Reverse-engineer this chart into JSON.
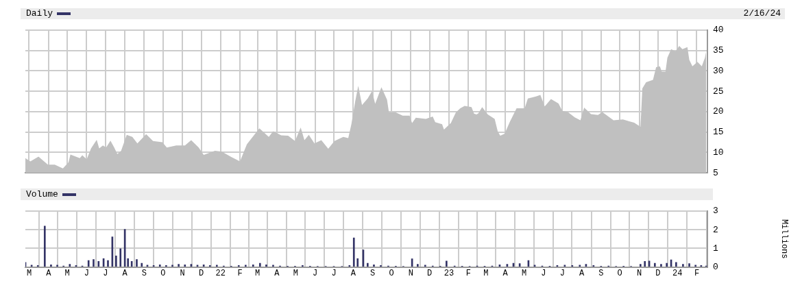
{
  "chart_data": [
    {
      "type": "area",
      "title": "Daily",
      "annotations": [
        "2/16/24"
      ],
      "color": "#c0c0c0",
      "x": [
        "2021-02-23",
        "2021-03-03",
        "2021-03-16",
        "2021-03-31",
        "2021-04-11",
        "2021-04-24",
        "2021-05-03",
        "2021-05-06",
        "2021-05-21",
        "2021-05-25",
        "2021-06-01",
        "2021-06-08",
        "2021-06-17",
        "2021-06-21",
        "2021-06-27",
        "2021-07-02",
        "2021-07-09",
        "2021-07-15",
        "2021-07-20",
        "2021-07-26",
        "2021-08-04",
        "2021-08-13",
        "2021-08-21",
        "2021-09-04",
        "2021-09-15",
        "2021-09-30",
        "2021-10-07",
        "2021-10-22",
        "2021-11-05",
        "2021-11-15",
        "2021-11-27",
        "2021-12-05",
        "2021-12-23",
        "2022-01-03",
        "2022-01-18",
        "2022-02-01",
        "2022-02-12",
        "2022-03-04",
        "2022-03-19",
        "2022-03-26",
        "2022-04-08",
        "2022-04-19",
        "2022-04-30",
        "2022-05-09",
        "2022-05-15",
        "2022-05-22",
        "2022-05-31",
        "2022-06-11",
        "2022-06-22",
        "2022-07-02",
        "2022-07-16",
        "2022-07-24",
        "2022-07-29",
        "2022-08-04",
        "2022-08-09",
        "2022-08-15",
        "2022-08-24",
        "2022-08-31",
        "2022-09-05",
        "2022-09-15",
        "2022-09-24",
        "2022-09-27",
        "2022-10-08",
        "2022-10-19",
        "2022-10-30",
        "2022-11-03",
        "2022-11-09",
        "2022-11-25",
        "2022-12-06",
        "2022-12-10",
        "2022-12-21",
        "2022-12-24",
        "2023-01-04",
        "2023-01-12",
        "2023-01-19",
        "2023-01-26",
        "2023-02-06",
        "2023-02-10",
        "2023-02-14",
        "2023-02-17",
        "2023-02-23",
        "2023-03-04",
        "2023-03-15",
        "2023-03-20",
        "2023-03-24",
        "2023-03-31",
        "2023-04-08",
        "2023-04-19",
        "2023-05-02",
        "2023-05-07",
        "2023-05-20",
        "2023-05-27",
        "2023-06-03",
        "2023-06-13",
        "2023-06-25",
        "2023-07-01",
        "2023-07-10",
        "2023-07-21",
        "2023-07-30",
        "2023-08-05",
        "2023-08-16",
        "2023-08-27",
        "2023-09-03",
        "2023-09-12",
        "2023-09-21",
        "2023-10-06",
        "2023-10-17",
        "2023-10-24",
        "2023-11-03",
        "2023-11-06",
        "2023-11-12",
        "2023-11-23",
        "2023-11-28",
        "2023-12-04",
        "2023-12-07",
        "2023-12-13",
        "2023-12-16",
        "2023-12-22",
        "2023-12-29",
        "2024-01-04",
        "2024-01-09",
        "2024-01-17",
        "2024-01-20",
        "2024-01-25",
        "2024-02-02",
        "2024-02-09",
        "2024-02-14",
        "2024-02-16"
      ],
      "values": [
        8.6,
        7.8,
        9,
        7,
        7,
        6.1,
        7.6,
        9.5,
        8.6,
        9.3,
        8.3,
        11,
        13.1,
        11,
        11.7,
        11.2,
        12.9,
        11.2,
        9.6,
        10.4,
        14.3,
        13.8,
        12.2,
        14.5,
        12.8,
        12.5,
        11.2,
        11.7,
        11.7,
        13,
        11.2,
        9.4,
        10.4,
        10.2,
        8.9,
        7.8,
        12,
        15.9,
        13.8,
        15.2,
        14.2,
        14.1,
        12.8,
        16.1,
        13,
        14.3,
        12.2,
        13,
        10.9,
        12.8,
        13.8,
        13.5,
        16.9,
        22.4,
        26.3,
        21.6,
        23.2,
        25,
        21.9,
        26,
        22.9,
        19.8,
        19.8,
        19,
        19,
        17.2,
        18.5,
        18.2,
        18.8,
        17.4,
        16.9,
        15.6,
        17.2,
        19.8,
        20.8,
        21.4,
        21.1,
        19.5,
        19.3,
        19.6,
        21.1,
        19.3,
        18.2,
        15.1,
        14.1,
        14.6,
        17.4,
        20.8,
        20.8,
        23.2,
        23.7,
        24.1,
        21.3,
        23.1,
        22,
        20.2,
        19.9,
        18.6,
        17.9,
        21,
        19.4,
        19.2,
        19.9,
        18.9,
        17.9,
        18.1,
        17.6,
        17.3,
        16.3,
        25.7,
        27.2,
        27.8,
        30.9,
        31.1,
        29.8,
        29.8,
        33.2,
        35.3,
        34.8,
        36.1,
        35.3,
        35.8,
        32.7,
        31.1,
        32.2,
        31.1,
        33.2,
        34.8
      ],
      "xlim": [
        "2021-02-23",
        "2024-02-18"
      ],
      "xticks": [
        {
          "value": "2021-03-01",
          "label": null
        },
        {
          "value": "2021-04-01",
          "label": null
        },
        {
          "value": "2021-05-01",
          "label": null
        },
        {
          "value": "2021-06-01",
          "label": null
        },
        {
          "value": "2021-07-01",
          "label": null
        },
        {
          "value": "2021-08-01",
          "label": null
        },
        {
          "value": "2021-09-01",
          "label": null
        },
        {
          "value": "2021-10-01",
          "label": null
        },
        {
          "value": "2021-11-01",
          "label": null
        },
        {
          "value": "2021-12-01",
          "label": null
        },
        {
          "value": "2022-01-01",
          "label": null
        },
        {
          "value": "2022-02-01",
          "label": null
        },
        {
          "value": "2022-03-01",
          "label": null
        },
        {
          "value": "2022-04-01",
          "label": null
        },
        {
          "value": "2022-05-01",
          "label": null
        },
        {
          "value": "2022-06-01",
          "label": null
        },
        {
          "value": "2022-07-01",
          "label": null
        },
        {
          "value": "2022-08-01",
          "label": null
        },
        {
          "value": "2022-09-01",
          "label": null
        },
        {
          "value": "2022-10-01",
          "label": null
        },
        {
          "value": "2022-11-01",
          "label": null
        },
        {
          "value": "2022-12-01",
          "label": null
        },
        {
          "value": "2023-01-01",
          "label": null
        },
        {
          "value": "2023-02-01",
          "label": null
        },
        {
          "value": "2023-03-01",
          "label": null
        },
        {
          "value": "2023-04-01",
          "label": null
        },
        {
          "value": "2023-05-01",
          "label": null
        },
        {
          "value": "2023-06-01",
          "label": null
        },
        {
          "value": "2023-07-01",
          "label": null
        },
        {
          "value": "2023-08-01",
          "label": null
        },
        {
          "value": "2023-09-01",
          "label": null
        },
        {
          "value": "2023-10-01",
          "label": null
        },
        {
          "value": "2023-11-01",
          "label": null
        },
        {
          "value": "2023-12-01",
          "label": null
        },
        {
          "value": "2024-01-01",
          "label": null
        },
        {
          "value": "2024-02-01",
          "label": null
        }
      ],
      "ylim": [
        5,
        40
      ],
      "yticks": [
        5,
        10,
        15,
        20,
        25,
        30,
        35,
        40
      ],
      "grid": true,
      "tick_labels": "y"
    },
    {
      "type": "bar",
      "title": "Volume",
      "ylabel": "Millions",
      "color": "#333366",
      "x": [
        "2021-02-23",
        "2021-03-05",
        "2021-03-15",
        "2021-03-26",
        "2021-04-05",
        "2021-04-15",
        "2021-04-25",
        "2021-05-05",
        "2021-05-15",
        "2021-05-25",
        "2021-06-04",
        "2021-06-12",
        "2021-06-20",
        "2021-06-28",
        "2021-07-05",
        "2021-07-12",
        "2021-07-18",
        "2021-07-25",
        "2021-08-01",
        "2021-08-06",
        "2021-08-12",
        "2021-08-20",
        "2021-08-28",
        "2021-09-06",
        "2021-09-16",
        "2021-09-26",
        "2021-10-06",
        "2021-10-16",
        "2021-10-26",
        "2021-11-05",
        "2021-11-15",
        "2021-11-25",
        "2021-12-05",
        "2021-12-15",
        "2021-12-26",
        "2022-01-06",
        "2022-01-18",
        "2022-01-30",
        "2022-02-10",
        "2022-02-22",
        "2022-03-05",
        "2022-03-15",
        "2022-03-26",
        "2022-04-06",
        "2022-04-18",
        "2022-04-30",
        "2022-05-12",
        "2022-05-24",
        "2022-06-05",
        "2022-06-18",
        "2022-07-01",
        "2022-07-14",
        "2022-07-26",
        "2022-08-02",
        "2022-08-08",
        "2022-08-17",
        "2022-08-24",
        "2022-09-03",
        "2022-09-14",
        "2022-09-26",
        "2022-10-08",
        "2022-10-20",
        "2022-11-03",
        "2022-11-12",
        "2022-11-24",
        "2022-12-06",
        "2022-12-18",
        "2022-12-28",
        "2023-01-10",
        "2023-01-22",
        "2023-02-03",
        "2023-02-15",
        "2023-02-27",
        "2023-03-11",
        "2023-03-23",
        "2023-04-04",
        "2023-04-14",
        "2023-04-24",
        "2023-05-08",
        "2023-05-18",
        "2023-05-30",
        "2023-06-11",
        "2023-06-23",
        "2023-07-05",
        "2023-07-17",
        "2023-07-29",
        "2023-08-08",
        "2023-08-20",
        "2023-09-01",
        "2023-09-13",
        "2023-09-25",
        "2023-10-07",
        "2023-10-19",
        "2023-11-03",
        "2023-11-10",
        "2023-11-17",
        "2023-11-26",
        "2023-12-06",
        "2023-12-15",
        "2023-12-22",
        "2023-12-30",
        "2024-01-10",
        "2024-01-20",
        "2024-01-30",
        "2024-02-08",
        "2024-02-16"
      ],
      "values": [
        0.25,
        0.1,
        0.08,
        2.19,
        0.12,
        0.1,
        0.06,
        0.15,
        0.08,
        0.06,
        0.35,
        0.4,
        0.3,
        0.45,
        0.35,
        1.61,
        0.6,
        0.98,
        2.02,
        0.45,
        0.3,
        0.4,
        0.2,
        0.1,
        0.08,
        0.12,
        0.08,
        0.1,
        0.15,
        0.12,
        0.15,
        0.1,
        0.12,
        0.08,
        0.1,
        0.06,
        0.05,
        0.08,
        0.1,
        0.12,
        0.2,
        0.12,
        0.1,
        0.06,
        0.05,
        0.05,
        0.08,
        0.05,
        0.04,
        0.04,
        0.04,
        0.04,
        0.08,
        1.56,
        0.45,
        0.92,
        0.2,
        0.12,
        0.08,
        0.06,
        0.05,
        0.04,
        0.44,
        0.15,
        0.1,
        0.06,
        0.05,
        0.32,
        0.06,
        0.05,
        0.04,
        0.06,
        0.05,
        0.06,
        0.12,
        0.15,
        0.2,
        0.18,
        0.35,
        0.1,
        0.06,
        0.05,
        0.08,
        0.1,
        0.08,
        0.1,
        0.15,
        0.08,
        0.05,
        0.06,
        0.04,
        0.05,
        0.04,
        0.15,
        0.3,
        0.32,
        0.2,
        0.15,
        0.2,
        0.39,
        0.25,
        0.15,
        0.18,
        0.1,
        0.08,
        0.06
      ],
      "xlim": [
        "2021-02-23",
        "2024-02-18"
      ],
      "xticks": [
        {
          "value": "2021-03-01",
          "label": "M"
        },
        {
          "value": "2021-04-01",
          "label": "A"
        },
        {
          "value": "2021-05-01",
          "label": "M"
        },
        {
          "value": "2021-06-01",
          "label": "J"
        },
        {
          "value": "2021-07-01",
          "label": "J"
        },
        {
          "value": "2021-08-01",
          "label": "A"
        },
        {
          "value": "2021-09-01",
          "label": "S"
        },
        {
          "value": "2021-10-01",
          "label": "O"
        },
        {
          "value": "2021-11-01",
          "label": "N"
        },
        {
          "value": "2021-12-01",
          "label": "D"
        },
        {
          "value": "2022-01-01",
          "label": "22"
        },
        {
          "value": "2022-02-01",
          "label": "F"
        },
        {
          "value": "2022-03-01",
          "label": "M"
        },
        {
          "value": "2022-04-01",
          "label": "A"
        },
        {
          "value": "2022-05-01",
          "label": "M"
        },
        {
          "value": "2022-06-01",
          "label": "J"
        },
        {
          "value": "2022-07-01",
          "label": "J"
        },
        {
          "value": "2022-08-01",
          "label": "A"
        },
        {
          "value": "2022-09-01",
          "label": "S"
        },
        {
          "value": "2022-10-01",
          "label": "O"
        },
        {
          "value": "2022-11-01",
          "label": "N"
        },
        {
          "value": "2022-12-01",
          "label": "D"
        },
        {
          "value": "2023-01-01",
          "label": "23"
        },
        {
          "value": "2023-02-01",
          "label": "F"
        },
        {
          "value": "2023-03-01",
          "label": "M"
        },
        {
          "value": "2023-04-01",
          "label": "A"
        },
        {
          "value": "2023-05-01",
          "label": "M"
        },
        {
          "value": "2023-06-01",
          "label": "J"
        },
        {
          "value": "2023-07-01",
          "label": "J"
        },
        {
          "value": "2023-08-01",
          "label": "A"
        },
        {
          "value": "2023-09-01",
          "label": "S"
        },
        {
          "value": "2023-10-01",
          "label": "O"
        },
        {
          "value": "2023-11-01",
          "label": "N"
        },
        {
          "value": "2023-12-01",
          "label": "D"
        },
        {
          "value": "2024-01-01",
          "label": "24"
        },
        {
          "value": "2024-02-01",
          "label": "F"
        }
      ],
      "ylim": [
        0,
        3
      ],
      "yticks": [
        0,
        1,
        2,
        3
      ],
      "grid": true
    }
  ]
}
